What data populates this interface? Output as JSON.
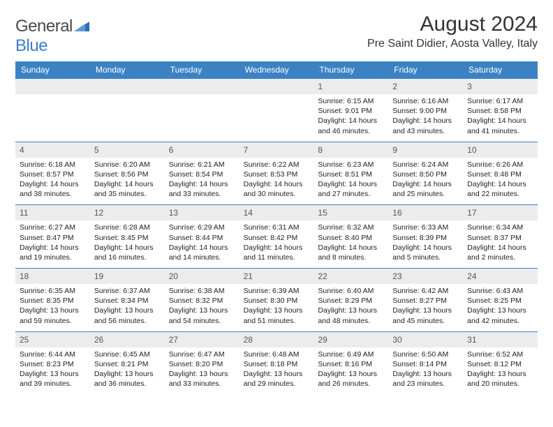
{
  "logo": {
    "text1": "General",
    "text2": "Blue"
  },
  "title": "August 2024",
  "location": "Pre Saint Didier, Aosta Valley, Italy",
  "colors": {
    "header_bg": "#3b82c4",
    "header_text": "#ffffff",
    "daynum_bg": "#ececec",
    "border": "#3b82c4",
    "text": "#222222"
  },
  "weekdays": [
    "Sunday",
    "Monday",
    "Tuesday",
    "Wednesday",
    "Thursday",
    "Friday",
    "Saturday"
  ],
  "weeks": [
    [
      null,
      null,
      null,
      null,
      {
        "n": "1",
        "sr": "Sunrise: 6:15 AM",
        "ss": "Sunset: 9:01 PM",
        "dl": "Daylight: 14 hours and 46 minutes."
      },
      {
        "n": "2",
        "sr": "Sunrise: 6:16 AM",
        "ss": "Sunset: 9:00 PM",
        "dl": "Daylight: 14 hours and 43 minutes."
      },
      {
        "n": "3",
        "sr": "Sunrise: 6:17 AM",
        "ss": "Sunset: 8:58 PM",
        "dl": "Daylight: 14 hours and 41 minutes."
      }
    ],
    [
      {
        "n": "4",
        "sr": "Sunrise: 6:18 AM",
        "ss": "Sunset: 8:57 PM",
        "dl": "Daylight: 14 hours and 38 minutes."
      },
      {
        "n": "5",
        "sr": "Sunrise: 6:20 AM",
        "ss": "Sunset: 8:56 PM",
        "dl": "Daylight: 14 hours and 35 minutes."
      },
      {
        "n": "6",
        "sr": "Sunrise: 6:21 AM",
        "ss": "Sunset: 8:54 PM",
        "dl": "Daylight: 14 hours and 33 minutes."
      },
      {
        "n": "7",
        "sr": "Sunrise: 6:22 AM",
        "ss": "Sunset: 8:53 PM",
        "dl": "Daylight: 14 hours and 30 minutes."
      },
      {
        "n": "8",
        "sr": "Sunrise: 6:23 AM",
        "ss": "Sunset: 8:51 PM",
        "dl": "Daylight: 14 hours and 27 minutes."
      },
      {
        "n": "9",
        "sr": "Sunrise: 6:24 AM",
        "ss": "Sunset: 8:50 PM",
        "dl": "Daylight: 14 hours and 25 minutes."
      },
      {
        "n": "10",
        "sr": "Sunrise: 6:26 AM",
        "ss": "Sunset: 8:48 PM",
        "dl": "Daylight: 14 hours and 22 minutes."
      }
    ],
    [
      {
        "n": "11",
        "sr": "Sunrise: 6:27 AM",
        "ss": "Sunset: 8:47 PM",
        "dl": "Daylight: 14 hours and 19 minutes."
      },
      {
        "n": "12",
        "sr": "Sunrise: 6:28 AM",
        "ss": "Sunset: 8:45 PM",
        "dl": "Daylight: 14 hours and 16 minutes."
      },
      {
        "n": "13",
        "sr": "Sunrise: 6:29 AM",
        "ss": "Sunset: 8:44 PM",
        "dl": "Daylight: 14 hours and 14 minutes."
      },
      {
        "n": "14",
        "sr": "Sunrise: 6:31 AM",
        "ss": "Sunset: 8:42 PM",
        "dl": "Daylight: 14 hours and 11 minutes."
      },
      {
        "n": "15",
        "sr": "Sunrise: 6:32 AM",
        "ss": "Sunset: 8:40 PM",
        "dl": "Daylight: 14 hours and 8 minutes."
      },
      {
        "n": "16",
        "sr": "Sunrise: 6:33 AM",
        "ss": "Sunset: 8:39 PM",
        "dl": "Daylight: 14 hours and 5 minutes."
      },
      {
        "n": "17",
        "sr": "Sunrise: 6:34 AM",
        "ss": "Sunset: 8:37 PM",
        "dl": "Daylight: 14 hours and 2 minutes."
      }
    ],
    [
      {
        "n": "18",
        "sr": "Sunrise: 6:35 AM",
        "ss": "Sunset: 8:35 PM",
        "dl": "Daylight: 13 hours and 59 minutes."
      },
      {
        "n": "19",
        "sr": "Sunrise: 6:37 AM",
        "ss": "Sunset: 8:34 PM",
        "dl": "Daylight: 13 hours and 56 minutes."
      },
      {
        "n": "20",
        "sr": "Sunrise: 6:38 AM",
        "ss": "Sunset: 8:32 PM",
        "dl": "Daylight: 13 hours and 54 minutes."
      },
      {
        "n": "21",
        "sr": "Sunrise: 6:39 AM",
        "ss": "Sunset: 8:30 PM",
        "dl": "Daylight: 13 hours and 51 minutes."
      },
      {
        "n": "22",
        "sr": "Sunrise: 6:40 AM",
        "ss": "Sunset: 8:29 PM",
        "dl": "Daylight: 13 hours and 48 minutes."
      },
      {
        "n": "23",
        "sr": "Sunrise: 6:42 AM",
        "ss": "Sunset: 8:27 PM",
        "dl": "Daylight: 13 hours and 45 minutes."
      },
      {
        "n": "24",
        "sr": "Sunrise: 6:43 AM",
        "ss": "Sunset: 8:25 PM",
        "dl": "Daylight: 13 hours and 42 minutes."
      }
    ],
    [
      {
        "n": "25",
        "sr": "Sunrise: 6:44 AM",
        "ss": "Sunset: 8:23 PM",
        "dl": "Daylight: 13 hours and 39 minutes."
      },
      {
        "n": "26",
        "sr": "Sunrise: 6:45 AM",
        "ss": "Sunset: 8:21 PM",
        "dl": "Daylight: 13 hours and 36 minutes."
      },
      {
        "n": "27",
        "sr": "Sunrise: 6:47 AM",
        "ss": "Sunset: 8:20 PM",
        "dl": "Daylight: 13 hours and 33 minutes."
      },
      {
        "n": "28",
        "sr": "Sunrise: 6:48 AM",
        "ss": "Sunset: 8:18 PM",
        "dl": "Daylight: 13 hours and 29 minutes."
      },
      {
        "n": "29",
        "sr": "Sunrise: 6:49 AM",
        "ss": "Sunset: 8:16 PM",
        "dl": "Daylight: 13 hours and 26 minutes."
      },
      {
        "n": "30",
        "sr": "Sunrise: 6:50 AM",
        "ss": "Sunset: 8:14 PM",
        "dl": "Daylight: 13 hours and 23 minutes."
      },
      {
        "n": "31",
        "sr": "Sunrise: 6:52 AM",
        "ss": "Sunset: 8:12 PM",
        "dl": "Daylight: 13 hours and 20 minutes."
      }
    ]
  ]
}
